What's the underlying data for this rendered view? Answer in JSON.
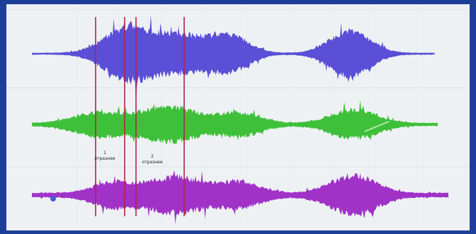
{
  "window": {
    "title": ""
  },
  "tracks": [
    {
      "id": "blue",
      "label": "",
      "color": "#5a4fd6"
    },
    {
      "id": "green",
      "label": "",
      "color": "#3ec03a"
    },
    {
      "id": "purple",
      "label": "",
      "color": "#a032c8"
    }
  ],
  "markers": {
    "color": "#b8214a",
    "labels": [
      {
        "number": "1",
        "text": "отразнее"
      },
      {
        "number": "2",
        "text": "отразнее"
      }
    ]
  },
  "axis": {
    "ticks": [
      "",
      "",
      "",
      "",
      ""
    ]
  }
}
